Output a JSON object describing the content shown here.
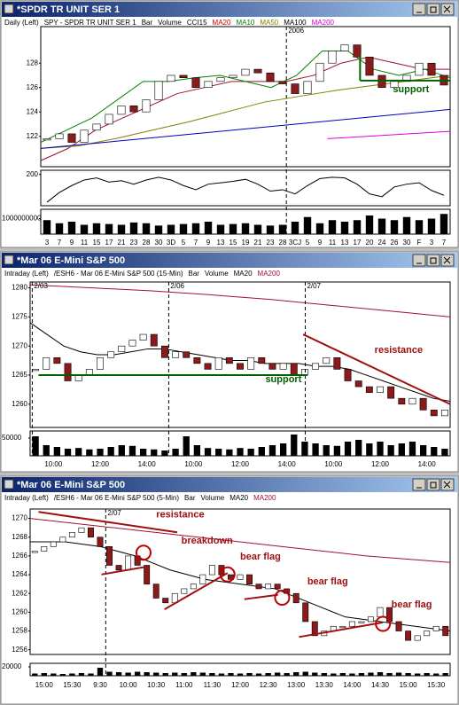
{
  "windows": [
    {
      "title": "*SPDR TR UNIT SER 1",
      "legend": [
        {
          "text": "Daily (Left)",
          "color": "#000"
        },
        {
          "text": "SPY - SPDR TR UNIT SER 1",
          "color": "#000"
        },
        {
          "text": "Bar",
          "color": "#000"
        },
        {
          "text": "Volume",
          "color": "#000"
        },
        {
          "text": "CCI15",
          "color": "#000"
        },
        {
          "text": "MA20",
          "color": "#c00000"
        },
        {
          "text": "MA10",
          "color": "#008000"
        },
        {
          "text": "MA50",
          "color": "#808000"
        },
        {
          "text": "MA100",
          "color": "#000"
        },
        {
          "text": "MA200",
          "color": "#d000d0"
        }
      ],
      "price": {
        "ylim": [
          119.5,
          131
        ],
        "yticks": [
          122,
          124,
          126,
          128
        ],
        "closes": [
          121.8,
          122.2,
          121.5,
          122.5,
          123,
          123.8,
          124.5,
          124,
          125,
          126.5,
          127,
          126.8,
          126,
          126.5,
          126.8,
          127,
          127.5,
          127.2,
          126.5,
          126.3,
          125.5,
          126.5,
          128,
          129,
          129.5,
          128.5,
          127,
          126,
          126.5,
          127,
          128,
          127,
          126.2
        ],
        "ma": [
          {
            "color": "#a01030",
            "values": [
              120,
              121,
              122.5,
              123.5,
              124.5,
              125.5,
              126,
              126.5,
              126.5,
              126.5,
              127,
              128,
              128.5,
              128,
              127.5,
              127.5
            ]
          },
          {
            "color": "#008000",
            "values": [
              121.5,
              122.5,
              123.5,
              125,
              126.5,
              126.5,
              126.8,
              127,
              126.5,
              126,
              127,
              129,
              129,
              127.5,
              127,
              127.5,
              126.8
            ]
          },
          {
            "color": "#808000",
            "values": [
              121,
              121.2,
              121.8,
              122.5,
              123.2,
              124,
              124.8,
              125.3,
              125.8,
              126.2,
              126.6,
              127
            ]
          },
          {
            "color": "#0000c0",
            "values": [
              121,
              121.4,
              121.8,
              122.2,
              122.6,
              123,
              123.4,
              123.8,
              124.2
            ]
          },
          {
            "color": "#e000e0",
            "values": [
              121.8,
              122.1,
              122.4
            ]
          }
        ]
      },
      "indicator": {
        "ylim": [
          -250,
          260
        ],
        "yticks": [
          200
        ],
        "values": [
          -200,
          -60,
          40,
          120,
          150,
          90,
          110,
          60,
          120,
          160,
          120,
          40,
          -20,
          60,
          80,
          100,
          130,
          60,
          -40,
          -20,
          -80,
          40,
          140,
          160,
          150,
          60,
          -80,
          -120,
          20,
          60,
          80,
          -30,
          -100
        ]
      },
      "volume": {
        "ylim": [
          0,
          1600000000
        ],
        "yticks": [
          1000000000
        ],
        "values": [
          900000000,
          700000000,
          800000000,
          600000000,
          700000000,
          650000000,
          600000000,
          750000000,
          700000000,
          550000000,
          600000000,
          650000000,
          700000000,
          800000000,
          600000000,
          650000000,
          700000000,
          600000000,
          550000000,
          600000000,
          800000000,
          1100000000,
          700000000,
          900000000,
          800000000,
          900000000,
          1200000000,
          1000000000,
          900000000,
          1100000000,
          900000000,
          1000000000,
          1300000000
        ]
      },
      "xlabels": [
        "3",
        "7",
        "9",
        "11",
        "15",
        "17",
        "21",
        "23",
        "28",
        "30",
        "3D",
        "5",
        "7",
        "9",
        "13",
        "15",
        "19",
        "21",
        "23",
        "28",
        "3CJ",
        "5",
        "9",
        "11",
        "13",
        "17",
        "20",
        "24",
        "26",
        "30",
        "F",
        "3",
        "7"
      ],
      "date_markers": [
        "2006"
      ],
      "annotations": [
        {
          "text": "support",
          "color": "#006000"
        }
      ]
    },
    {
      "title": "*Mar 06  E-Mini S&P 500",
      "legend": [
        {
          "text": "Intraday (Left)",
          "color": "#000"
        },
        {
          "text": "/ESH6 - Mar 06  E-Mini S&P 500 (15-Min)",
          "color": "#000"
        },
        {
          "text": "Bar",
          "color": "#000"
        },
        {
          "text": "Volume",
          "color": "#000"
        },
        {
          "text": "MA20",
          "color": "#000"
        },
        {
          "text": "MA200",
          "color": "#a01030"
        }
      ],
      "price": {
        "ylim": [
          1256,
          1281
        ],
        "yticks": [
          1260,
          1265,
          1270,
          1275,
          1280
        ],
        "closes": [
          1266,
          1268,
          1267,
          1264,
          1265,
          1266,
          1268,
          1269,
          1270,
          1271,
          1272,
          1270,
          1268,
          1269,
          1268,
          1267,
          1266,
          1268,
          1267,
          1266,
          1268,
          1267,
          1266,
          1267,
          1265,
          1266,
          1267,
          1268,
          1266,
          1264,
          1263,
          1262,
          1263,
          1261,
          1260,
          1261,
          1259,
          1258,
          1259
        ],
        "ma": [
          {
            "color": "#000",
            "values": [
              1274,
              1272,
              1270,
              1269,
              1268.5,
              1268.5,
              1269,
              1269.5,
              1269.5,
              1269,
              1268.5,
              1268,
              1267.5,
              1267.5,
              1267,
              1267,
              1267,
              1266.5,
              1266.5,
              1266,
              1265,
              1264,
              1263,
              1262,
              1261,
              1260.5
            ]
          },
          {
            "color": "#a01030",
            "values": [
              1280.5,
              1280,
              1279.5,
              1278.8,
              1278,
              1277,
              1276,
              1275
            ]
          }
        ]
      },
      "volume": {
        "ylim": [
          0,
          70000
        ],
        "yticks": [
          50000
        ],
        "values": [
          55000,
          30000,
          25000,
          20000,
          22000,
          18000,
          20000,
          25000,
          30000,
          28000,
          20000,
          18000,
          15000,
          20000,
          55000,
          30000,
          22000,
          20000,
          18000,
          22000,
          20000,
          25000,
          30000,
          35000,
          60000,
          40000,
          35000,
          30000,
          28000,
          40000,
          45000,
          35000,
          40000,
          30000,
          35000,
          40000,
          30000,
          25000,
          20000
        ]
      },
      "xlabels": [
        "10:00",
        "12:00",
        "14:00",
        "10:00",
        "12:00",
        "14:00",
        "10:00",
        "12:00",
        "14:00"
      ],
      "date_markers": [
        "2/03",
        "2/06",
        "2/07"
      ],
      "annotations": [
        {
          "text": "support",
          "color": "#006000"
        },
        {
          "text": "resistance",
          "color": "#a01010"
        }
      ]
    },
    {
      "title": "*Mar 06  E-Mini S&P 500",
      "legend": [
        {
          "text": "Intraday (Left)",
          "color": "#000"
        },
        {
          "text": "/ESH6 - Mar 06  E-Mini S&P 500 (5-Min)",
          "color": "#000"
        },
        {
          "text": "Bar",
          "color": "#000"
        },
        {
          "text": "Volume",
          "color": "#000"
        },
        {
          "text": "MA20",
          "color": "#000"
        },
        {
          "text": "MA200",
          "color": "#a01030"
        }
      ],
      "price": {
        "ylim": [
          1255.5,
          1271
        ],
        "yticks": [
          1256,
          1258,
          1260,
          1262,
          1264,
          1266,
          1268,
          1270
        ],
        "closes": [
          1266.5,
          1267,
          1267.5,
          1268,
          1268.5,
          1269,
          1268,
          1267,
          1265,
          1264.5,
          1266,
          1265,
          1263,
          1261.5,
          1261,
          1262,
          1262.5,
          1263,
          1264,
          1265,
          1264,
          1263.5,
          1264,
          1263,
          1262.5,
          1263,
          1262.5,
          1262,
          1261,
          1259,
          1257.5,
          1258,
          1258.5,
          1258.5,
          1259,
          1259,
          1259.5,
          1260.5,
          1259,
          1258,
          1257,
          1257.5,
          1258,
          1258.5,
          1257.5
        ],
        "ma": [
          {
            "color": "#000",
            "values": [
              1267.5,
              1267.5,
              1267,
              1266,
              1264.5,
              1263.5,
              1263,
              1262.5,
              1261,
              1259.5,
              1259,
              1258.5,
              1258
            ]
          },
          {
            "color": "#a01030",
            "values": [
              1270,
              1269,
              1268,
              1267,
              1266,
              1265.3
            ]
          }
        ]
      },
      "volume": {
        "ylim": [
          0,
          28000
        ],
        "yticks": [
          20000
        ],
        "values": [
          5000,
          6000,
          5000,
          4000,
          5000,
          6000,
          5000,
          18000,
          9000,
          8000,
          7000,
          9000,
          8000,
          7000,
          6000,
          7000,
          6000,
          8000,
          7000,
          6000,
          5000,
          6000,
          5000,
          6000,
          5000,
          6000,
          7000,
          6000,
          8000,
          9000,
          7000,
          6000,
          5000,
          6000,
          5000,
          6000,
          7000,
          8000,
          6000,
          7000,
          6000,
          5000,
          6000,
          5000,
          6000
        ]
      },
      "xlabels": [
        "15:00",
        "15:30",
        "9:30",
        "10:00",
        "10:30",
        "11:00",
        "11:30",
        "12:00",
        "12:30",
        "13:00",
        "13:30",
        "14:00",
        "14:30",
        "15:00",
        "15:30"
      ],
      "date_markers": [
        "2/07"
      ],
      "annotations": [
        {
          "text": "resistance",
          "color": "#a01010"
        },
        {
          "text": "breakdown",
          "color": "#a01010"
        },
        {
          "text": "bear flag",
          "color": "#a01010"
        },
        {
          "text": "bear flag",
          "color": "#a01010"
        },
        {
          "text": "bear flag",
          "color": "#a01010"
        }
      ]
    }
  ]
}
